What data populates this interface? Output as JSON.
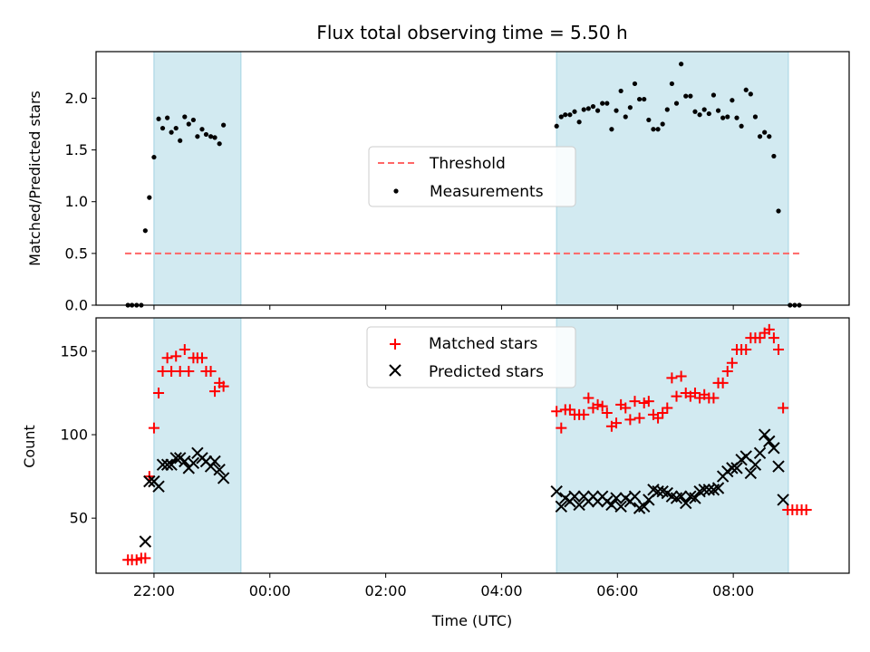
{
  "chart_data": {
    "title": "Flux total observing time = 5.50 h",
    "xlabel": "Time (UTC)",
    "x_unit": "hours relative to 00:00 UTC",
    "x_range": [
      -3.0,
      10.0
    ],
    "x_ticks": [
      "22:00",
      "00:00",
      "02:00",
      "04:00",
      "06:00",
      "08:00"
    ],
    "colors": {
      "window": "#add8e6",
      "threshold": "#ff6666",
      "measurements": "#000000",
      "matched": "#ff0000",
      "predicted": "#000000"
    },
    "observing_windows": [
      [
        -2.0,
        -0.5
      ],
      [
        4.95,
        8.95
      ]
    ],
    "top": {
      "type": "scatter",
      "ylabel": "Matched/Predicted stars",
      "ylim": [
        0,
        2.45
      ],
      "y_ticks": [
        "0.0",
        "0.5",
        "1.0",
        "1.5",
        "2.0"
      ],
      "legend": {
        "position": "center",
        "threshold": "Threshold",
        "measurements": "Measurements"
      },
      "threshold_value": 0.5,
      "threshold_x": [
        -2.5,
        9.2
      ],
      "measurements": [
        [
          -2.45,
          0.0
        ],
        [
          -2.38,
          0.0
        ],
        [
          -2.3,
          0.0
        ],
        [
          -2.22,
          0.0
        ],
        [
          -2.15,
          0.72
        ],
        [
          -2.08,
          1.04
        ],
        [
          -2.0,
          1.43
        ],
        [
          -1.92,
          1.8
        ],
        [
          -1.85,
          1.71
        ],
        [
          -1.77,
          1.81
        ],
        [
          -1.7,
          1.67
        ],
        [
          -1.62,
          1.71
        ],
        [
          -1.55,
          1.59
        ],
        [
          -1.47,
          1.82
        ],
        [
          -1.4,
          1.75
        ],
        [
          -1.32,
          1.79
        ],
        [
          -1.25,
          1.63
        ],
        [
          -1.17,
          1.7
        ],
        [
          -1.1,
          1.65
        ],
        [
          -1.02,
          1.63
        ],
        [
          -0.95,
          1.62
        ],
        [
          -0.87,
          1.56
        ],
        [
          -0.8,
          1.74
        ],
        [
          4.95,
          1.73
        ],
        [
          5.03,
          1.82
        ],
        [
          5.1,
          1.84
        ],
        [
          5.18,
          1.84
        ],
        [
          5.26,
          1.87
        ],
        [
          5.34,
          1.77
        ],
        [
          5.42,
          1.89
        ],
        [
          5.5,
          1.9
        ],
        [
          5.58,
          1.92
        ],
        [
          5.66,
          1.88
        ],
        [
          5.74,
          1.95
        ],
        [
          5.82,
          1.95
        ],
        [
          5.9,
          1.7
        ],
        [
          5.98,
          1.88
        ],
        [
          6.06,
          2.07
        ],
        [
          6.14,
          1.82
        ],
        [
          6.22,
          1.91
        ],
        [
          6.3,
          2.14
        ],
        [
          6.38,
          1.99
        ],
        [
          6.46,
          1.99
        ],
        [
          6.54,
          1.79
        ],
        [
          6.62,
          1.7
        ],
        [
          6.7,
          1.7
        ],
        [
          6.78,
          1.75
        ],
        [
          6.86,
          1.89
        ],
        [
          6.94,
          2.14
        ],
        [
          7.02,
          1.95
        ],
        [
          7.1,
          2.33
        ],
        [
          7.18,
          2.02
        ],
        [
          7.26,
          2.02
        ],
        [
          7.34,
          1.87
        ],
        [
          7.42,
          1.84
        ],
        [
          7.5,
          1.89
        ],
        [
          7.58,
          1.85
        ],
        [
          7.66,
          2.03
        ],
        [
          7.74,
          1.88
        ],
        [
          7.82,
          1.81
        ],
        [
          7.9,
          1.82
        ],
        [
          7.98,
          1.98
        ],
        [
          8.06,
          1.81
        ],
        [
          8.14,
          1.73
        ],
        [
          8.22,
          2.08
        ],
        [
          8.3,
          2.04
        ],
        [
          8.38,
          1.82
        ],
        [
          8.46,
          1.63
        ],
        [
          8.54,
          1.67
        ],
        [
          8.62,
          1.63
        ],
        [
          8.7,
          1.44
        ],
        [
          8.78,
          0.91
        ],
        [
          8.98,
          0.0
        ],
        [
          9.06,
          0.0
        ],
        [
          9.14,
          0.0
        ]
      ]
    },
    "bottom": {
      "type": "scatter",
      "ylabel": "Count",
      "ylim": [
        17,
        170
      ],
      "y_ticks": [
        "50",
        "100",
        "150"
      ],
      "legend": {
        "position": "top-center",
        "matched": "Matched stars",
        "predicted": "Predicted stars"
      },
      "matched": [
        [
          -2.45,
          25
        ],
        [
          -2.38,
          25
        ],
        [
          -2.3,
          25
        ],
        [
          -2.22,
          26
        ],
        [
          -2.15,
          26
        ],
        [
          -2.08,
          75
        ],
        [
          -2.0,
          104
        ],
        [
          -1.92,
          125
        ],
        [
          -1.85,
          138
        ],
        [
          -1.77,
          146
        ],
        [
          -1.7,
          138
        ],
        [
          -1.62,
          147
        ],
        [
          -1.55,
          138
        ],
        [
          -1.47,
          151
        ],
        [
          -1.4,
          138
        ],
        [
          -1.32,
          146
        ],
        [
          -1.25,
          146
        ],
        [
          -1.17,
          146
        ],
        [
          -1.1,
          138
        ],
        [
          -1.02,
          138
        ],
        [
          -0.95,
          126
        ],
        [
          -0.87,
          131
        ],
        [
          -0.8,
          129
        ],
        [
          4.95,
          114
        ],
        [
          5.03,
          104
        ],
        [
          5.1,
          115
        ],
        [
          5.18,
          115
        ],
        [
          5.26,
          112
        ],
        [
          5.34,
          112
        ],
        [
          5.42,
          112
        ],
        [
          5.5,
          122
        ],
        [
          5.58,
          116
        ],
        [
          5.66,
          118
        ],
        [
          5.74,
          117
        ],
        [
          5.82,
          113
        ],
        [
          5.9,
          105
        ],
        [
          5.98,
          107
        ],
        [
          6.06,
          118
        ],
        [
          6.14,
          116
        ],
        [
          6.22,
          109
        ],
        [
          6.3,
          120
        ],
        [
          6.38,
          110
        ],
        [
          6.46,
          119
        ],
        [
          6.54,
          120
        ],
        [
          6.62,
          112
        ],
        [
          6.7,
          110
        ],
        [
          6.78,
          113
        ],
        [
          6.86,
          116
        ],
        [
          6.94,
          134
        ],
        [
          7.02,
          123
        ],
        [
          7.1,
          135
        ],
        [
          7.18,
          125
        ],
        [
          7.26,
          123
        ],
        [
          7.34,
          125
        ],
        [
          7.42,
          122
        ],
        [
          7.5,
          124
        ],
        [
          7.58,
          122
        ],
        [
          7.66,
          122
        ],
        [
          7.74,
          131
        ],
        [
          7.82,
          131
        ],
        [
          7.9,
          138
        ],
        [
          7.98,
          143
        ],
        [
          8.06,
          151
        ],
        [
          8.14,
          151
        ],
        [
          8.22,
          151
        ],
        [
          8.3,
          158
        ],
        [
          8.38,
          158
        ],
        [
          8.46,
          158
        ],
        [
          8.54,
          161
        ],
        [
          8.62,
          163
        ],
        [
          8.7,
          158
        ],
        [
          8.78,
          151
        ],
        [
          8.86,
          116
        ],
        [
          8.94,
          55
        ],
        [
          9.02,
          55
        ],
        [
          9.1,
          55
        ],
        [
          9.18,
          55
        ],
        [
          9.26,
          55
        ]
      ],
      "predicted": [
        [
          -2.15,
          36
        ],
        [
          -2.08,
          72
        ],
        [
          -2.0,
          72
        ],
        [
          -1.92,
          69
        ],
        [
          -1.85,
          82
        ],
        [
          -1.77,
          82
        ],
        [
          -1.7,
          82
        ],
        [
          -1.62,
          86
        ],
        [
          -1.55,
          86
        ],
        [
          -1.47,
          84
        ],
        [
          -1.4,
          80
        ],
        [
          -1.32,
          83
        ],
        [
          -1.25,
          89
        ],
        [
          -1.17,
          86
        ],
        [
          -1.1,
          84
        ],
        [
          -1.02,
          81
        ],
        [
          -0.95,
          84
        ],
        [
          -0.87,
          79
        ],
        [
          -0.8,
          74
        ],
        [
          4.95,
          66
        ],
        [
          5.03,
          57
        ],
        [
          5.1,
          62
        ],
        [
          5.18,
          60
        ],
        [
          5.26,
          63
        ],
        [
          5.34,
          58
        ],
        [
          5.42,
          63
        ],
        [
          5.5,
          60
        ],
        [
          5.58,
          63
        ],
        [
          5.66,
          60
        ],
        [
          5.74,
          63
        ],
        [
          5.82,
          60
        ],
        [
          5.9,
          58
        ],
        [
          5.98,
          62
        ],
        [
          6.06,
          57
        ],
        [
          6.14,
          62
        ],
        [
          6.22,
          60
        ],
        [
          6.3,
          63
        ],
        [
          6.38,
          56
        ],
        [
          6.46,
          57
        ],
        [
          6.54,
          61
        ],
        [
          6.62,
          67
        ],
        [
          6.7,
          66
        ],
        [
          6.78,
          66
        ],
        [
          6.86,
          65
        ],
        [
          6.94,
          63
        ],
        [
          7.02,
          62
        ],
        [
          7.1,
          63
        ],
        [
          7.18,
          59
        ],
        [
          7.26,
          63
        ],
        [
          7.34,
          62
        ],
        [
          7.42,
          66
        ],
        [
          7.5,
          67
        ],
        [
          7.58,
          67
        ],
        [
          7.66,
          67
        ],
        [
          7.74,
          68
        ],
        [
          7.82,
          75
        ],
        [
          7.9,
          78
        ],
        [
          7.98,
          80
        ],
        [
          8.06,
          80
        ],
        [
          8.14,
          85
        ],
        [
          8.22,
          87
        ],
        [
          8.3,
          77
        ],
        [
          8.38,
          82
        ],
        [
          8.46,
          89
        ],
        [
          8.54,
          100
        ],
        [
          8.62,
          96
        ],
        [
          8.7,
          92
        ],
        [
          8.78,
          81
        ],
        [
          8.86,
          61
        ]
      ]
    }
  }
}
